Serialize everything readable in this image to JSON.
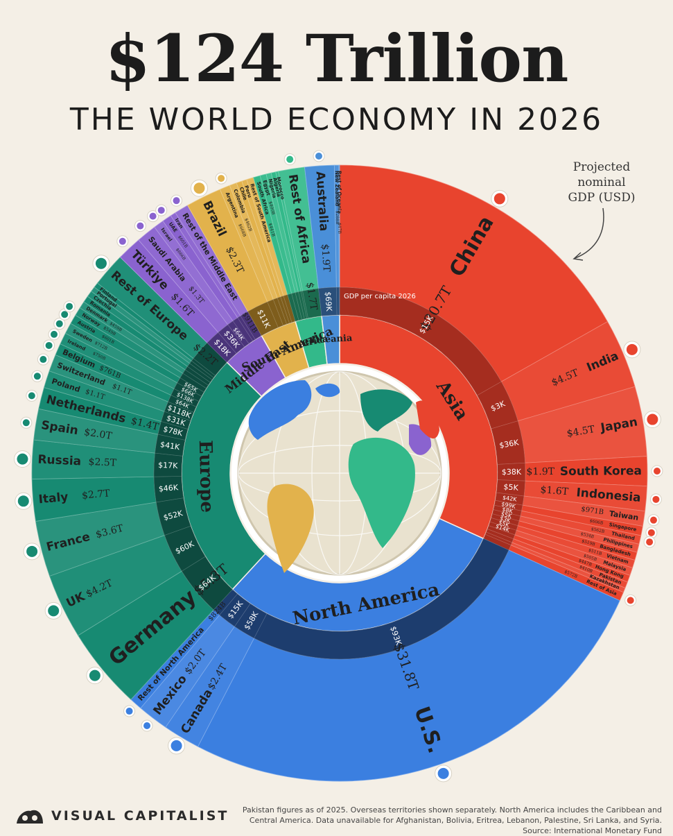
{
  "header": {
    "title": "$124 Trillion",
    "subtitle": "THE WORLD ECONOMY IN 2026",
    "annotation": [
      "Projected",
      "nominal",
      "GDP (USD)"
    ]
  },
  "chart_data": {
    "type": "sunburst",
    "title": "$124 Trillion",
    "subtitle": "THE WORLD ECONOMY IN 2026",
    "value_unit": "Projected nominal GDP (USD)",
    "inner_ring_label": "GDP per capita 2026",
    "regions": [
      {
        "name": "Asia",
        "color": "#e8442e",
        "dark": "#a52d1f",
        "per_capita": "$15K",
        "countries": [
          {
            "name": "China",
            "gdp": "$20.7T",
            "value": 20.7,
            "per_capita": "$15K"
          },
          {
            "name": "India",
            "gdp": "$4.5T",
            "value": 4.5,
            "per_capita": "$3K"
          },
          {
            "name": "Japan",
            "gdp": "$4.5T",
            "value": 4.5,
            "per_capita": "$36K"
          },
          {
            "name": "South Korea",
            "gdp": "$1.9T",
            "value": 1.9,
            "per_capita": "$38K"
          },
          {
            "name": "Indonesia",
            "gdp": "$1.6T",
            "value": 1.6,
            "per_capita": "$5K"
          },
          {
            "name": "Taiwan",
            "gdp": "$971B",
            "value": 0.971,
            "per_capita": "$42K"
          },
          {
            "name": "Singapore",
            "gdp": "$606B",
            "value": 0.606,
            "per_capita": "$99K"
          },
          {
            "name": "Thailand",
            "gdp": "$562B",
            "value": 0.562,
            "per_capita": "$8K"
          },
          {
            "name": "Philippines",
            "gdp": "$534B",
            "value": 0.534,
            "per_capita": "$5K"
          },
          {
            "name": "Bangladesh",
            "gdp": "$519B",
            "value": 0.519,
            "per_capita": "$3K"
          },
          {
            "name": "Vietnam",
            "gdp": "$511B",
            "value": 0.511,
            "per_capita": "$5K"
          },
          {
            "name": "Malaysia",
            "gdp": "$505B",
            "value": 0.505,
            "per_capita": "$14K"
          },
          {
            "name": "Hong Kong",
            "gdp": "$447B",
            "value": 0.447,
            "per_capita": ""
          },
          {
            "name": "Pakistan",
            "gdp": "$410B",
            "value": 0.41,
            "per_capita": ""
          },
          {
            "name": "Kazakhstan",
            "gdp": "",
            "value": 0.3,
            "per_capita": ""
          },
          {
            "name": "Rest of Asia",
            "gdp": "$572B",
            "value": 0.572,
            "per_capita": ""
          }
        ]
      },
      {
        "name": "North America",
        "color": "#3b7fe0",
        "dark": "#1d3d6e",
        "per_capita": "$58K",
        "countries": [
          {
            "name": "U.S.",
            "gdp": "$31.8T",
            "value": 31.8,
            "per_capita": "$93K"
          },
          {
            "name": "Canada",
            "gdp": "$2.4T",
            "value": 2.4,
            "per_capita": "$58K"
          },
          {
            "name": "Mexico",
            "gdp": "$2.0T",
            "value": 2.0,
            "per_capita": "$15K"
          },
          {
            "name": "Rest of North America",
            "gdp": "$824B",
            "value": 0.824,
            "per_capita": ""
          }
        ]
      },
      {
        "name": "Europe",
        "color": "#178a72",
        "dark": "#0e4a3f",
        "per_capita": "$64K",
        "countries": [
          {
            "name": "Germany",
            "gdp": "$5.3T",
            "value": 5.3,
            "per_capita": "$64K"
          },
          {
            "name": "UK",
            "gdp": "$4.2T",
            "value": 4.2,
            "per_capita": "$60K"
          },
          {
            "name": "France",
            "gdp": "$3.6T",
            "value": 3.6,
            "per_capita": "$52K"
          },
          {
            "name": "Italy",
            "gdp": "$2.7T",
            "value": 2.7,
            "per_capita": "$46K"
          },
          {
            "name": "Russia",
            "gdp": "$2.5T",
            "value": 2.5,
            "per_capita": "$17K"
          },
          {
            "name": "Spain",
            "gdp": "$2.0T",
            "value": 2.0,
            "per_capita": "$41K"
          },
          {
            "name": "Netherlands",
            "gdp": "$1.4T",
            "value": 1.4,
            "per_capita": "$78K"
          },
          {
            "name": "Poland",
            "gdp": "$1.1T",
            "value": 1.1,
            "per_capita": "$31K"
          },
          {
            "name": "Switzerland",
            "gdp": "$1.1T",
            "value": 1.1,
            "per_capita": "$118K"
          },
          {
            "name": "Belgium",
            "gdp": "$761B",
            "value": 0.761,
            "per_capita": "$64K"
          },
          {
            "name": "Ireland",
            "gdp": "$750B",
            "value": 0.75,
            "per_capita": "$138K"
          },
          {
            "name": "Sweden",
            "gdp": "$712B",
            "value": 0.712,
            "per_capita": "$66K"
          },
          {
            "name": "Austria",
            "gdp": "$601B",
            "value": 0.601,
            "per_capita": "$65K"
          },
          {
            "name": "Norway",
            "gdp": "$549B",
            "value": 0.549,
            "per_capita": ""
          },
          {
            "name": "Denmark",
            "gdp": "$459B",
            "value": 0.459,
            "per_capita": ""
          },
          {
            "name": "Romania",
            "gdp": "",
            "value": 0.42,
            "per_capita": ""
          },
          {
            "name": "Czechia",
            "gdp": "",
            "value": 0.4,
            "per_capita": ""
          },
          {
            "name": "Portugal",
            "gdp": "",
            "value": 0.33,
            "per_capita": ""
          },
          {
            "name": "Finland",
            "gdp": "",
            "value": 0.32,
            "per_capita": ""
          },
          {
            "name": "Rest of Europe",
            "gdp": "$2.2T",
            "value": 2.2,
            "per_capita": ""
          }
        ]
      },
      {
        "name": "Middle East",
        "color": "#8a63cf",
        "dark": "#4a347a",
        "per_capita": "$18K",
        "countries": [
          {
            "name": "Türkiye",
            "gdp": "$1.6T",
            "value": 1.6,
            "per_capita": "$18K"
          },
          {
            "name": "Saudi Arabia",
            "gdp": "$1.3T",
            "value": 1.3,
            "per_capita": "$36K"
          },
          {
            "name": "Israel",
            "gdp": "$666B",
            "value": 0.666,
            "per_capita": "$64K"
          },
          {
            "name": "UAE",
            "gdp": "$601B",
            "value": 0.601,
            "per_capita": ""
          },
          {
            "name": "Iran",
            "gdp": "",
            "value": 0.35,
            "per_capita": ""
          },
          {
            "name": "Rest of the Middle East",
            "gdp": "$911B",
            "value": 0.911,
            "per_capita": ""
          }
        ]
      },
      {
        "name": "South America",
        "color": "#e2b24c",
        "dark": "#7e5d1c",
        "per_capita": "$11K",
        "countries": [
          {
            "name": "Brazil",
            "gdp": "$2.3T",
            "value": 2.3,
            "per_capita": "$11K"
          },
          {
            "name": "Argentina",
            "gdp": "$668B",
            "value": 0.668,
            "per_capita": ""
          },
          {
            "name": "Colombia",
            "gdp": "$462B",
            "value": 0.462,
            "per_capita": ""
          },
          {
            "name": "Chile",
            "gdp": "",
            "value": 0.36,
            "per_capita": ""
          },
          {
            "name": "Peru",
            "gdp": "",
            "value": 0.32,
            "per_capita": ""
          },
          {
            "name": "Rest of South America",
            "gdp": "",
            "value": 0.45,
            "per_capita": ""
          }
        ]
      },
      {
        "name": "Africa",
        "color": "#33b98a",
        "dark": "#1b6a4e",
        "per_capita": "",
        "countries": [
          {
            "name": "South Africa",
            "gdp": "$441B",
            "value": 0.441,
            "per_capita": ""
          },
          {
            "name": "Egypt",
            "gdp": "$400B",
            "value": 0.4,
            "per_capita": ""
          },
          {
            "name": "Nigeria",
            "gdp": "",
            "value": 0.33,
            "per_capita": ""
          },
          {
            "name": "Algeria",
            "gdp": "",
            "value": 0.29,
            "per_capita": ""
          },
          {
            "name": "Morocco",
            "gdp": "",
            "value": 0.17,
            "per_capita": ""
          },
          {
            "name": "Rest of Africa",
            "gdp": "$1.7T",
            "value": 1.7,
            "per_capita": ""
          }
        ]
      },
      {
        "name": "Oceania",
        "color": "#4a8fd8",
        "dark": "#2a4f7a",
        "per_capita": "$69K",
        "countries": [
          {
            "name": "Australia",
            "gdp": "$1.9T",
            "value": 1.9,
            "per_capita": "$69K"
          },
          {
            "name": "New Zealand",
            "gdp": "$288B",
            "value": 0.288,
            "per_capita": ""
          },
          {
            "name": "Rest of Oceania",
            "gdp": "$47B",
            "value": 0.047,
            "per_capita": ""
          }
        ]
      }
    ]
  },
  "footer": {
    "brand": "VISUAL CAPITALIST",
    "note": "Pakistan figures as of 2025. Overseas territories shown separately. North America includes the Caribbean and Central America. Data unavailable for Afghanistan, Bolivia, Eritrea, Lebanon, Palestine, Sri Lanka, and Syria. Source: International Monetary Fund"
  }
}
